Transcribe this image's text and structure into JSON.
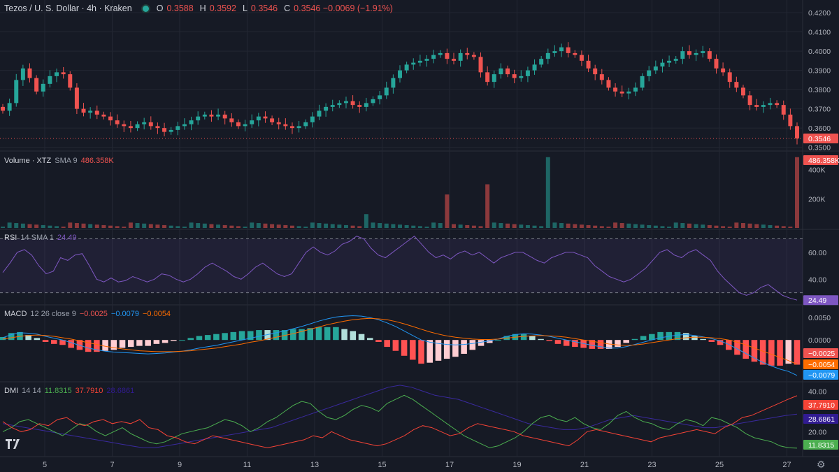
{
  "header": {
    "title": "Tezos / U. S. Dollar · 4h · Kraken",
    "ohlc": [
      {
        "k": "O",
        "v": "0.3588"
      },
      {
        "k": "H",
        "v": "0.3592"
      },
      {
        "k": "L",
        "v": "0.3546"
      },
      {
        "k": "C",
        "v": "0.3546 −0.0069 (−1.91%)"
      }
    ]
  },
  "indicators": {
    "volume": {
      "name": "Volume · XTZ",
      "params": "SMA 9",
      "value": "486.358K"
    },
    "rsi": {
      "name": "RSI",
      "params": "14 SMA 1",
      "value": "24.49"
    },
    "macd": {
      "name": "MACD",
      "params": "12 26 close 9",
      "v1": "−0.0025",
      "v2": "−0.0079",
      "v3": "−0.0054"
    },
    "dmi": {
      "name": "DMI",
      "params": "14 14",
      "v1": "11.8315",
      "v2": "37.7910",
      "v3": "28.6861"
    }
  },
  "colors": {
    "bg": "#161a25",
    "up": "#26a69a",
    "down": "#ef5350",
    "grid": "#232733",
    "text": "#d1d4dc",
    "rsi": "#7e57c2",
    "macd": "#2196f3",
    "signal": "#ff6d00",
    "dmi_plus": "#4caf50",
    "dmi_minus": "#f44336",
    "adx": "#311b92"
  },
  "icons": {
    "logo": "tradingview-logo",
    "settings": "gear-icon"
  },
  "chart_data": {
    "type": "candlestick",
    "x_ticks": [
      "5",
      "7",
      "9",
      "11",
      "13",
      "15",
      "17",
      "19",
      "21",
      "23",
      "25",
      "27"
    ],
    "price_ticks": [
      "0.4200",
      "0.4100",
      "0.4000",
      "0.3900",
      "0.3800",
      "0.3700",
      "0.3600",
      "0.3500"
    ],
    "price_range": [
      0.3495,
      0.4215
    ],
    "last_price": "0.3546",
    "close": [
      0.369,
      0.373,
      0.385,
      0.391,
      0.386,
      0.379,
      0.383,
      0.387,
      0.389,
      0.388,
      0.381,
      0.37,
      0.368,
      0.369,
      0.367,
      0.366,
      0.364,
      0.362,
      0.361,
      0.36,
      0.362,
      0.363,
      0.361,
      0.36,
      0.358,
      0.359,
      0.361,
      0.362,
      0.364,
      0.366,
      0.367,
      0.366,
      0.367,
      0.365,
      0.363,
      0.361,
      0.362,
      0.364,
      0.366,
      0.365,
      0.363,
      0.362,
      0.361,
      0.36,
      0.361,
      0.363,
      0.366,
      0.369,
      0.371,
      0.372,
      0.373,
      0.374,
      0.372,
      0.371,
      0.373,
      0.375,
      0.377,
      0.381,
      0.386,
      0.39,
      0.393,
      0.394,
      0.395,
      0.396,
      0.398,
      0.399,
      0.396,
      0.395,
      0.399,
      0.398,
      0.397,
      0.389,
      0.384,
      0.388,
      0.391,
      0.388,
      0.386,
      0.387,
      0.39,
      0.393,
      0.396,
      0.399,
      0.4,
      0.402,
      0.399,
      0.398,
      0.395,
      0.391,
      0.388,
      0.385,
      0.381,
      0.379,
      0.378,
      0.379,
      0.381,
      0.387,
      0.39,
      0.392,
      0.394,
      0.395,
      0.396,
      0.4,
      0.398,
      0.399,
      0.4,
      0.396,
      0.391,
      0.389,
      0.384,
      0.381,
      0.377,
      0.372,
      0.371,
      0.372,
      0.373,
      0.372,
      0.367,
      0.361,
      0.3546
    ],
    "volume_ticks": [
      "400K",
      "200K"
    ],
    "volume_range": [
      0,
      490000
    ],
    "volume_spikes": [
      {
        "t": 0.56,
        "value": 230000
      },
      {
        "t": 0.61,
        "value": 300000
      },
      {
        "t": 0.69,
        "value": 486358
      },
      {
        "t": 0.46,
        "value": 95000
      },
      {
        "t": 1.0,
        "value": 486358
      }
    ],
    "rsi": {
      "value": 24.49,
      "ticks": [
        "60.00",
        "40.00"
      ],
      "range": [
        22,
        76
      ],
      "bands": [
        70,
        30
      ]
    },
    "rsi_series": [
      45,
      52,
      60,
      62,
      58,
      50,
      44,
      46,
      56,
      54,
      58,
      59,
      50,
      40,
      38,
      41,
      38,
      39,
      42,
      40,
      38,
      40,
      44,
      43,
      40,
      38,
      40,
      44,
      49,
      52,
      49,
      46,
      42,
      40,
      44,
      49,
      52,
      48,
      44,
      42,
      44,
      52,
      60,
      64,
      60,
      58,
      61,
      66,
      68,
      72,
      70,
      63,
      58,
      56,
      60,
      64,
      68,
      72,
      66,
      60,
      56,
      58,
      55,
      59,
      61,
      58,
      60,
      56,
      52,
      56,
      58,
      60,
      60,
      57,
      54,
      52,
      56,
      58,
      60,
      60,
      58,
      56,
      50,
      46,
      42,
      40,
      38,
      40,
      44,
      48,
      54,
      60,
      62,
      58,
      56,
      60,
      62,
      58,
      54,
      46,
      40,
      35,
      30,
      28,
      30,
      34,
      36,
      32,
      28,
      26,
      24.49
    ],
    "macd": {
      "ticks": [
        "0.0050",
        "0.0000"
      ],
      "range": [
        -0.009,
        0.0075
      ]
    },
    "macd_series": [
      0.0005,
      0.0012,
      0.0016,
      0.0015,
      0.0013,
      0.0008,
      0.0004,
      0.0,
      -0.0006,
      -0.0012,
      -0.0018,
      -0.0022,
      -0.0025,
      -0.0027,
      -0.0028,
      -0.0029,
      -0.003,
      -0.0031,
      -0.003,
      -0.0029,
      -0.0027,
      -0.0025,
      -0.0022,
      -0.0018,
      -0.0015,
      -0.0012,
      -0.0008,
      -0.0004,
      0.0,
      0.0004,
      0.0008,
      0.0012,
      0.0016,
      0.002,
      0.0025,
      0.003,
      0.0036,
      0.0042,
      0.0047,
      0.0051,
      0.0053,
      0.0054,
      0.0053,
      0.005,
      0.0045,
      0.0038,
      0.003,
      0.002,
      0.001,
      0.0,
      -0.0005,
      -0.0008,
      -0.001,
      -0.0011,
      -0.001,
      -0.0008,
      -0.0005,
      -0.0002,
      0.0002,
      0.0008,
      0.0012,
      0.0014,
      0.0013,
      0.0011,
      0.0008,
      0.0004,
      0.0,
      -0.0004,
      -0.0008,
      -0.0012,
      -0.0015,
      -0.0018,
      -0.0018,
      -0.0015,
      -0.001,
      -0.0005,
      0.0,
      0.0005,
      0.0008,
      0.0011,
      0.0012,
      0.001,
      0.0007,
      0.0003,
      -0.0002,
      -0.001,
      -0.002,
      -0.003,
      -0.004,
      -0.005,
      -0.0058,
      -0.0065,
      -0.007,
      -0.0079
    ],
    "signal_series": [
      0.0002,
      0.0005,
      0.0008,
      0.001,
      0.0011,
      0.001,
      0.0008,
      0.0005,
      0.0002,
      -0.0002,
      -0.0006,
      -0.001,
      -0.0014,
      -0.0017,
      -0.002,
      -0.0022,
      -0.0024,
      -0.0025,
      -0.0026,
      -0.0026,
      -0.0026,
      -0.0025,
      -0.0024,
      -0.0022,
      -0.002,
      -0.0018,
      -0.0015,
      -0.0012,
      -0.0009,
      -0.0005,
      -0.0002,
      0.0002,
      0.0006,
      0.001,
      0.0014,
      0.0019,
      0.0024,
      0.0029,
      0.0034,
      0.0038,
      0.0042,
      0.0045,
      0.0047,
      0.0048,
      0.0047,
      0.0045,
      0.0041,
      0.0036,
      0.003,
      0.0024,
      0.0018,
      0.0013,
      0.0009,
      0.0006,
      0.0004,
      0.0002,
      0.0001,
      0.0001,
      0.0002,
      0.0004,
      0.0006,
      0.0008,
      0.0009,
      0.001,
      0.0009,
      0.0008,
      0.0006,
      0.0003,
      0.0,
      -0.0003,
      -0.0006,
      -0.0009,
      -0.0011,
      -0.0012,
      -0.0011,
      -0.0009,
      -0.0006,
      -0.0003,
      0.0,
      0.0003,
      0.0005,
      0.0006,
      0.0006,
      0.0005,
      0.0003,
      0.0,
      -0.0005,
      -0.0011,
      -0.0018,
      -0.0025,
      -0.0032,
      -0.0039,
      -0.0046,
      -0.0054
    ],
    "dmi": {
      "ticks": [
        "40.00",
        "20.00"
      ],
      "range": [
        8,
        44
      ]
    },
    "dmi_plus": [
      20,
      22,
      25,
      26,
      24,
      22,
      20,
      18,
      21,
      24,
      23,
      20,
      18,
      20,
      22,
      19,
      17,
      15,
      14,
      15,
      17,
      19,
      20,
      21,
      22,
      24,
      26,
      25,
      23,
      20,
      22,
      25,
      27,
      30,
      33,
      35,
      34,
      30,
      27,
      26,
      28,
      31,
      33,
      32,
      30,
      34,
      36,
      38,
      36,
      33,
      30,
      27,
      24,
      21,
      18,
      16,
      14,
      12,
      13,
      15,
      17,
      20,
      24,
      27,
      28,
      26,
      25,
      27,
      24,
      22,
      21,
      24,
      28,
      30,
      27,
      25,
      24,
      22,
      21,
      24,
      26,
      25,
      23,
      27,
      26,
      24,
      22,
      19,
      17,
      16,
      15,
      13,
      12,
      11.83
    ],
    "dmi_minus": [
      25,
      22,
      20,
      21,
      24,
      23,
      26,
      27,
      24,
      23,
      25,
      26,
      24,
      25,
      24,
      26,
      22,
      21,
      18,
      17,
      15,
      14,
      16,
      18,
      17,
      16,
      15,
      14,
      13,
      12,
      13,
      14,
      15,
      16,
      18,
      17,
      20,
      18,
      16,
      15,
      14,
      13,
      14,
      16,
      18,
      21,
      23,
      22,
      20,
      18,
      19,
      22,
      24,
      23,
      22,
      21,
      20,
      18,
      17,
      16,
      15,
      14,
      13,
      16,
      20,
      21,
      20,
      19,
      18,
      17,
      16,
      15,
      17,
      18,
      19,
      20,
      21,
      20,
      19,
      22,
      24,
      27,
      28,
      30,
      32,
      34,
      36,
      37.79
    ],
    "adx": [
      24,
      23,
      22,
      21,
      20,
      19,
      18,
      17,
      16,
      15,
      14,
      13,
      12,
      12,
      13,
      14,
      15,
      16,
      17,
      18,
      19,
      20,
      21,
      22,
      24,
      26,
      28,
      30,
      32,
      34,
      36,
      38,
      40,
      42,
      43,
      42,
      40,
      38,
      37,
      36,
      34,
      32,
      30,
      28,
      26,
      24,
      23,
      22,
      21,
      21,
      22,
      24,
      26,
      27,
      28,
      27,
      26,
      25,
      24,
      23,
      22,
      22,
      23,
      24,
      25,
      26,
      27,
      28,
      28.69
    ]
  }
}
